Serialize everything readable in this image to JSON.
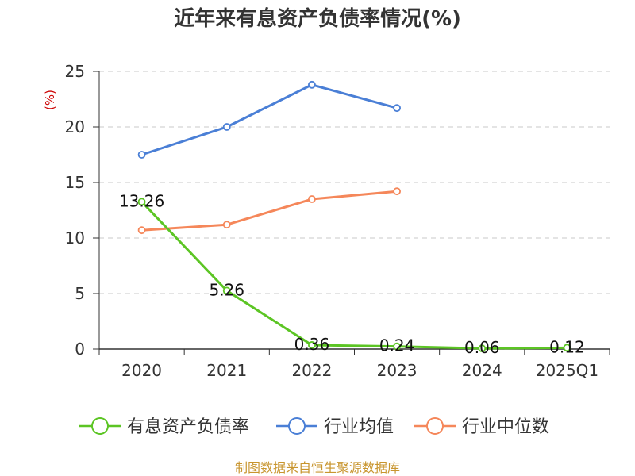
{
  "chart_data": {
    "type": "line",
    "title": "近年来有息资产负债率情况(%)",
    "ylabel": "(%)",
    "xlabel": "",
    "categories": [
      "2020",
      "2021",
      "2022",
      "2023",
      "2024",
      "2025Q1"
    ],
    "ylim": [
      0,
      25
    ],
    "yticks": [
      0,
      5,
      10,
      15,
      20,
      25
    ],
    "grid": true,
    "legend_position": "bottom",
    "series": [
      {
        "name": "有息资产负债率",
        "color": "#5cc524",
        "values": [
          13.26,
          5.26,
          0.36,
          0.24,
          0.06,
          0.12
        ],
        "labels": [
          "13.26",
          "5.26",
          "0.36",
          "0.24",
          "0.06",
          "0.12"
        ]
      },
      {
        "name": "行业均值",
        "color": "#4a7fd6",
        "values": [
          17.5,
          20.0,
          23.8,
          21.7,
          null,
          null
        ]
      },
      {
        "name": "行业中位数",
        "color": "#f5875a",
        "values": [
          10.7,
          11.2,
          13.5,
          14.2,
          null,
          null
        ]
      }
    ],
    "source": "制图数据来自恒生聚源数据库"
  }
}
